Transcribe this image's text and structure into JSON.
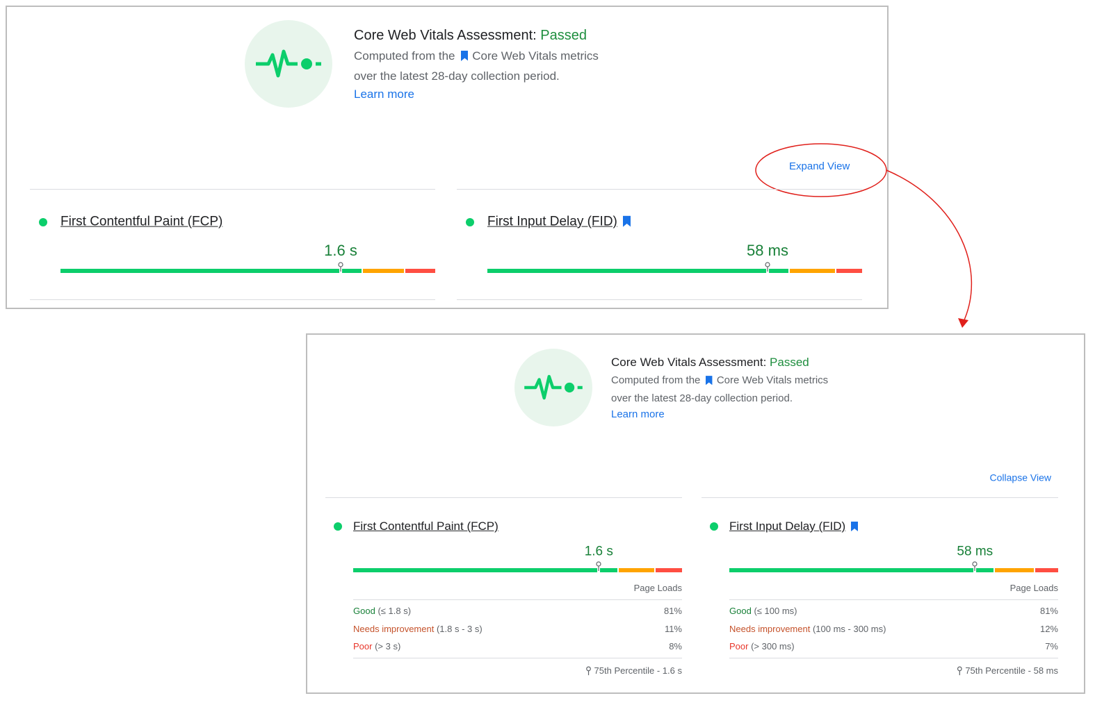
{
  "collapsed": {
    "title_prefix": "Core Web Vitals Assessment:",
    "status": "Passed",
    "desc_prefix": "Computed from the",
    "desc_link": "Core Web Vitals metrics",
    "desc_line2": "over the latest 28-day collection period.",
    "learn_more": "Learn more",
    "toggle": "Expand View",
    "metrics": [
      {
        "name": "First Contentful Paint (FCP)",
        "value": "1.6 s"
      },
      {
        "name": "First Input Delay (FID)",
        "value": "58 ms"
      }
    ]
  },
  "expanded": {
    "title_prefix": "Core Web Vitals Assessment:",
    "status": "Passed",
    "desc_prefix": "Computed from the",
    "desc_link": "Core Web Vitals metrics",
    "desc_line2": "over the latest 28-day collection period.",
    "learn_more": "Learn more",
    "toggle": "Collapse View",
    "metrics": [
      {
        "name": "First Contentful Paint (FCP)",
        "value": "1.6 s",
        "column_header": "Page Loads",
        "rows": [
          {
            "label": "Good",
            "range": "(≤ 1.8 s)",
            "share": "81%"
          },
          {
            "label": "Needs improvement",
            "range": "(1.8 s - 3 s)",
            "share": "11%"
          },
          {
            "label": "Poor",
            "range": "(> 3 s)",
            "share": "8%"
          }
        ],
        "percentile": "75th Percentile - 1.6 s"
      },
      {
        "name": "First Input Delay (FID)",
        "value": "58 ms",
        "column_header": "Page Loads",
        "rows": [
          {
            "label": "Good",
            "range": "(≤ 100 ms)",
            "share": "81%"
          },
          {
            "label": "Needs improvement",
            "range": "(100 ms - 300 ms)",
            "share": "12%"
          },
          {
            "label": "Poor",
            "range": "(> 300 ms)",
            "share": "7%"
          }
        ],
        "percentile": "75th Percentile - 58 ms"
      }
    ]
  }
}
